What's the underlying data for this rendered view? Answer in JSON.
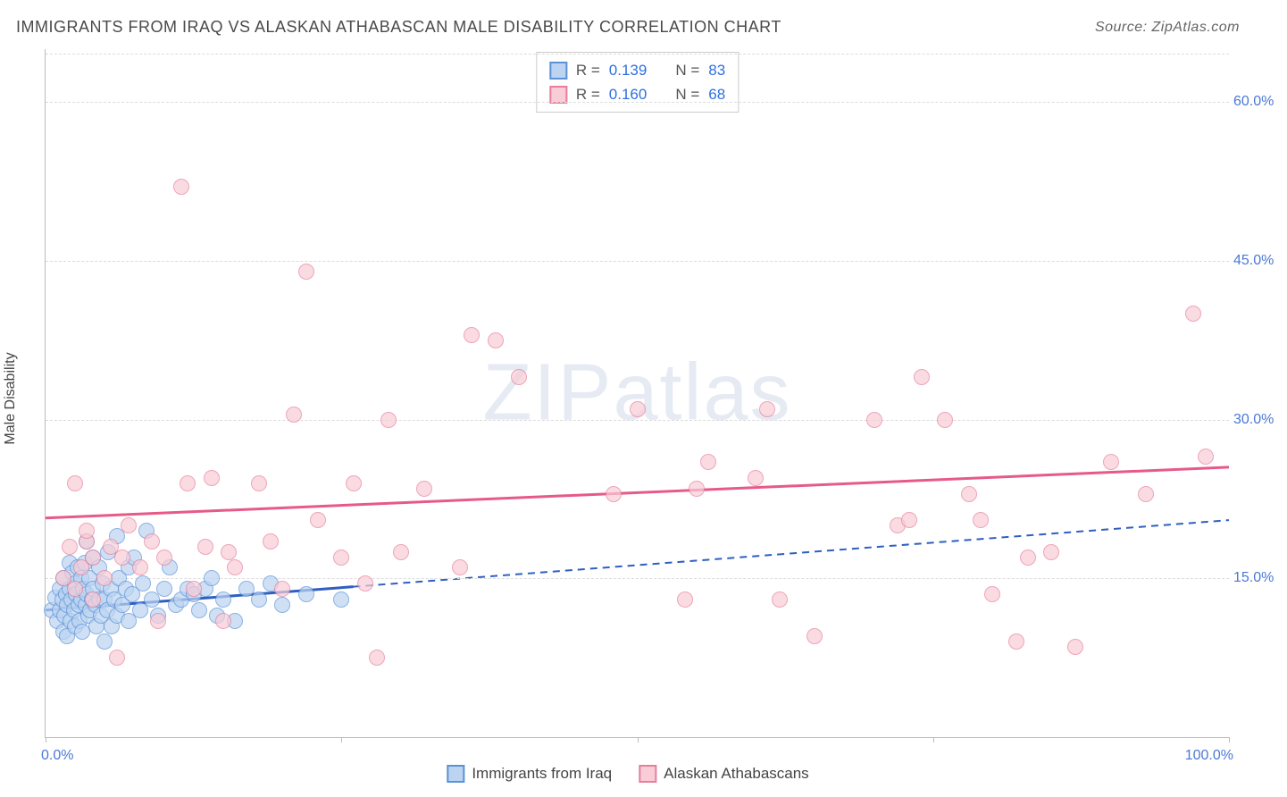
{
  "title": "IMMIGRANTS FROM IRAQ VS ALASKAN ATHABASCAN MALE DISABILITY CORRELATION CHART",
  "source": "Source: ZipAtlas.com",
  "ylabel": "Male Disability",
  "watermark": "ZIPatlas",
  "legend_top": {
    "series": [
      {
        "swatch_fill": "#bcd4f1",
        "swatch_border": "#5a92d8",
        "r_label": "R =",
        "r_value": "0.139",
        "n_label": "N =",
        "n_value": "83"
      },
      {
        "swatch_fill": "#f8cdd7",
        "swatch_border": "#e77f9b",
        "r_label": "R =",
        "r_value": "0.160",
        "n_label": "N =",
        "n_value": "68"
      }
    ]
  },
  "legend_bottom": [
    {
      "swatch_fill": "#bcd4f1",
      "swatch_border": "#5a92d8",
      "label": "Immigrants from Iraq"
    },
    {
      "swatch_fill": "#f8cdd7",
      "swatch_border": "#e77f9b",
      "label": "Alaskan Athabascans"
    }
  ],
  "chart": {
    "type": "scatter",
    "background_color": "#ffffff",
    "grid_color": "#dcdcdc",
    "axis_color": "#bbbbbb",
    "label_color": "#4a78d6",
    "xlim": [
      0,
      100
    ],
    "ylim": [
      0,
      65
    ],
    "xticks": [
      {
        "pos": 0,
        "label": "0.0%"
      },
      {
        "pos": 25,
        "label": ""
      },
      {
        "pos": 50,
        "label": ""
      },
      {
        "pos": 75,
        "label": ""
      },
      {
        "pos": 100,
        "label": "100.0%"
      }
    ],
    "yticks": [
      {
        "pos": 15,
        "label": "15.0%"
      },
      {
        "pos": 30,
        "label": "30.0%"
      },
      {
        "pos": 45,
        "label": "45.0%"
      },
      {
        "pos": 60,
        "label": "60.0%"
      }
    ],
    "series": [
      {
        "name": "Immigrants from Iraq",
        "marker_fill": "#bcd4f1",
        "marker_border": "#5a92d8",
        "marker_opacity": 0.7,
        "marker_size": 18,
        "trend": {
          "color": "#2f5fc0",
          "width": 3,
          "solid_to_x": 26,
          "x1": 0,
          "y1": 12.0,
          "x2": 100,
          "y2": 20.5
        },
        "points": [
          [
            0.5,
            12.0
          ],
          [
            0.8,
            13.2
          ],
          [
            1.0,
            11.0
          ],
          [
            1.2,
            14.0
          ],
          [
            1.2,
            12.0
          ],
          [
            1.4,
            13.0
          ],
          [
            1.5,
            15.0
          ],
          [
            1.5,
            10.0
          ],
          [
            1.6,
            11.5
          ],
          [
            1.7,
            13.5
          ],
          [
            1.8,
            12.5
          ],
          [
            1.8,
            9.5
          ],
          [
            2.0,
            14.0
          ],
          [
            2.0,
            16.5
          ],
          [
            2.1,
            11.0
          ],
          [
            2.2,
            13.0
          ],
          [
            2.3,
            15.5
          ],
          [
            2.4,
            12.0
          ],
          [
            2.5,
            10.5
          ],
          [
            2.5,
            14.5
          ],
          [
            2.6,
            13.5
          ],
          [
            2.7,
            16.0
          ],
          [
            2.8,
            12.5
          ],
          [
            2.9,
            11.0
          ],
          [
            3.0,
            15.0
          ],
          [
            3.0,
            13.0
          ],
          [
            3.1,
            10.0
          ],
          [
            3.2,
            14.0
          ],
          [
            3.3,
            16.5
          ],
          [
            3.4,
            12.5
          ],
          [
            3.5,
            13.5
          ],
          [
            3.5,
            18.5
          ],
          [
            3.6,
            11.5
          ],
          [
            3.7,
            15.0
          ],
          [
            3.8,
            12.0
          ],
          [
            3.9,
            13.0
          ],
          [
            4.0,
            14.0
          ],
          [
            4.0,
            17.0
          ],
          [
            4.2,
            12.5
          ],
          [
            4.3,
            10.5
          ],
          [
            4.5,
            13.0
          ],
          [
            4.5,
            16.0
          ],
          [
            4.7,
            11.5
          ],
          [
            4.8,
            14.5
          ],
          [
            5.0,
            13.0
          ],
          [
            5.0,
            9.0
          ],
          [
            5.2,
            12.0
          ],
          [
            5.3,
            17.5
          ],
          [
            5.5,
            14.0
          ],
          [
            5.6,
            10.5
          ],
          [
            5.8,
            13.0
          ],
          [
            6.0,
            11.5
          ],
          [
            6.0,
            19.0
          ],
          [
            6.2,
            15.0
          ],
          [
            6.5,
            12.5
          ],
          [
            6.8,
            14.0
          ],
          [
            7.0,
            16.0
          ],
          [
            7.0,
            11.0
          ],
          [
            7.3,
            13.5
          ],
          [
            7.5,
            17.0
          ],
          [
            8.0,
            12.0
          ],
          [
            8.2,
            14.5
          ],
          [
            8.5,
            19.5
          ],
          [
            9.0,
            13.0
          ],
          [
            9.5,
            11.5
          ],
          [
            10.0,
            14.0
          ],
          [
            10.5,
            16.0
          ],
          [
            11.0,
            12.5
          ],
          [
            11.5,
            13.0
          ],
          [
            12.0,
            14.0
          ],
          [
            12.5,
            13.5
          ],
          [
            13.0,
            12.0
          ],
          [
            13.5,
            14.0
          ],
          [
            14.0,
            15.0
          ],
          [
            14.5,
            11.5
          ],
          [
            15.0,
            13.0
          ],
          [
            16.0,
            11.0
          ],
          [
            17.0,
            14.0
          ],
          [
            18.0,
            13.0
          ],
          [
            19.0,
            14.5
          ],
          [
            20.0,
            12.5
          ],
          [
            22.0,
            13.5
          ],
          [
            25.0,
            13.0
          ]
        ]
      },
      {
        "name": "Alaskan Athabascans",
        "marker_fill": "#f8cdd7",
        "marker_border": "#e77f9b",
        "marker_opacity": 0.7,
        "marker_size": 18,
        "trend": {
          "color": "#e65a87",
          "width": 3,
          "solid_to_x": 100,
          "x1": 0,
          "y1": 20.7,
          "x2": 100,
          "y2": 25.5
        },
        "points": [
          [
            1.5,
            15.0
          ],
          [
            2.0,
            18.0
          ],
          [
            2.5,
            14.0
          ],
          [
            2.5,
            24.0
          ],
          [
            3.0,
            16.0
          ],
          [
            3.5,
            18.5
          ],
          [
            3.5,
            19.5
          ],
          [
            4.0,
            13.0
          ],
          [
            4.0,
            17.0
          ],
          [
            5.0,
            15.0
          ],
          [
            5.5,
            18.0
          ],
          [
            6.0,
            7.5
          ],
          [
            6.5,
            17.0
          ],
          [
            7.0,
            20.0
          ],
          [
            8.0,
            16.0
          ],
          [
            9.0,
            18.5
          ],
          [
            9.5,
            11.0
          ],
          [
            10.0,
            17.0
          ],
          [
            11.5,
            52.0
          ],
          [
            12.0,
            24.0
          ],
          [
            12.5,
            14.0
          ],
          [
            13.5,
            18.0
          ],
          [
            14.0,
            24.5
          ],
          [
            15.0,
            11.0
          ],
          [
            15.5,
            17.5
          ],
          [
            16.0,
            16.0
          ],
          [
            18.0,
            24.0
          ],
          [
            19.0,
            18.5
          ],
          [
            20.0,
            14.0
          ],
          [
            21.0,
            30.5
          ],
          [
            22.0,
            44.0
          ],
          [
            23.0,
            20.5
          ],
          [
            25.0,
            17.0
          ],
          [
            26.0,
            24.0
          ],
          [
            27.0,
            14.5
          ],
          [
            28.0,
            7.5
          ],
          [
            29.0,
            30.0
          ],
          [
            30.0,
            17.5
          ],
          [
            32.0,
            23.5
          ],
          [
            35.0,
            16.0
          ],
          [
            36.0,
            38.0
          ],
          [
            38.0,
            37.5
          ],
          [
            40.0,
            34.0
          ],
          [
            48.0,
            23.0
          ],
          [
            50.0,
            31.0
          ],
          [
            54.0,
            13.0
          ],
          [
            55.0,
            23.5
          ],
          [
            56.0,
            26.0
          ],
          [
            60.0,
            24.5
          ],
          [
            61.0,
            31.0
          ],
          [
            62.0,
            13.0
          ],
          [
            65.0,
            9.5
          ],
          [
            70.0,
            30.0
          ],
          [
            72.0,
            20.0
          ],
          [
            73.0,
            20.5
          ],
          [
            74.0,
            34.0
          ],
          [
            76.0,
            30.0
          ],
          [
            78.0,
            23.0
          ],
          [
            79.0,
            20.5
          ],
          [
            80.0,
            13.5
          ],
          [
            82.0,
            9.0
          ],
          [
            83.0,
            17.0
          ],
          [
            85.0,
            17.5
          ],
          [
            87.0,
            8.5
          ],
          [
            90.0,
            26.0
          ],
          [
            93.0,
            23.0
          ],
          [
            97.0,
            40.0
          ],
          [
            98.0,
            26.5
          ]
        ]
      }
    ]
  }
}
